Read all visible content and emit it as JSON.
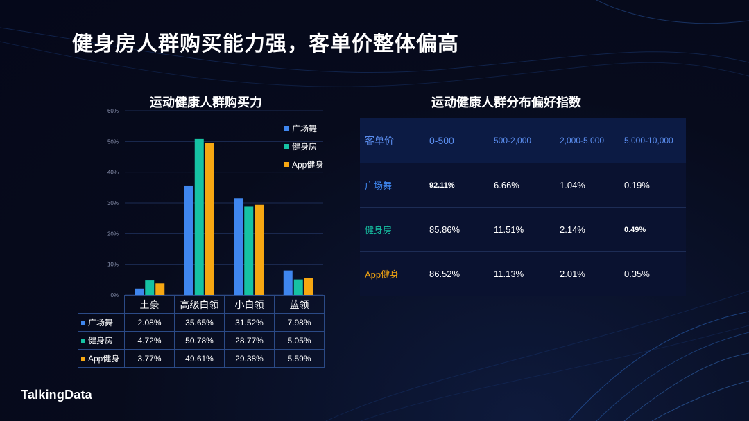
{
  "page": {
    "title": "健身房人群购买能力强，客单价整体偏高",
    "logo": "TalkingData"
  },
  "colors": {
    "guangchangwu": "#3f86ee",
    "jianshenfang": "#16c2a3",
    "app": "#f6a712"
  },
  "chart_data": {
    "type": "bar",
    "title": "运动健康人群购买力",
    "categories": [
      "土豪",
      "高级白领",
      "小白领",
      "蓝领"
    ],
    "ylim": [
      0,
      60
    ],
    "yticks": [
      "0%",
      "10%",
      "20%",
      "30%",
      "40%",
      "50%",
      "60%"
    ],
    "grid": true,
    "legend_position": "top-right",
    "series": [
      {
        "name": "广场舞",
        "values": [
          2.08,
          35.65,
          31.52,
          7.98
        ],
        "labels": [
          "2.08%",
          "35.65%",
          "31.52%",
          "7.98%"
        ]
      },
      {
        "name": "健身房",
        "values": [
          4.72,
          50.78,
          28.77,
          5.05
        ],
        "labels": [
          "4.72%",
          "50.78%",
          "28.77%",
          "5.05%"
        ]
      },
      {
        "name": "App健身",
        "values": [
          3.77,
          49.61,
          29.38,
          5.59
        ],
        "labels": [
          "3.77%",
          "49.61%",
          "29.38%",
          "5.59%"
        ]
      }
    ]
  },
  "pref_table": {
    "title": "运动健康人群分布偏好指数",
    "columns": [
      "客单价",
      "0-500",
      "500-2,000",
      "2,000-5,000",
      "5,000-10,000"
    ],
    "rows": [
      {
        "label": "广场舞",
        "cells": [
          "92.11%",
          "6.66%",
          "1.04%",
          "0.19%"
        ]
      },
      {
        "label": "健身房",
        "cells": [
          "85.86%",
          "11.51%",
          "2.14%",
          "0.49%"
        ]
      },
      {
        "label": "App健身",
        "cells": [
          "86.52%",
          "11.13%",
          "2.01%",
          "0.35%"
        ]
      }
    ]
  }
}
